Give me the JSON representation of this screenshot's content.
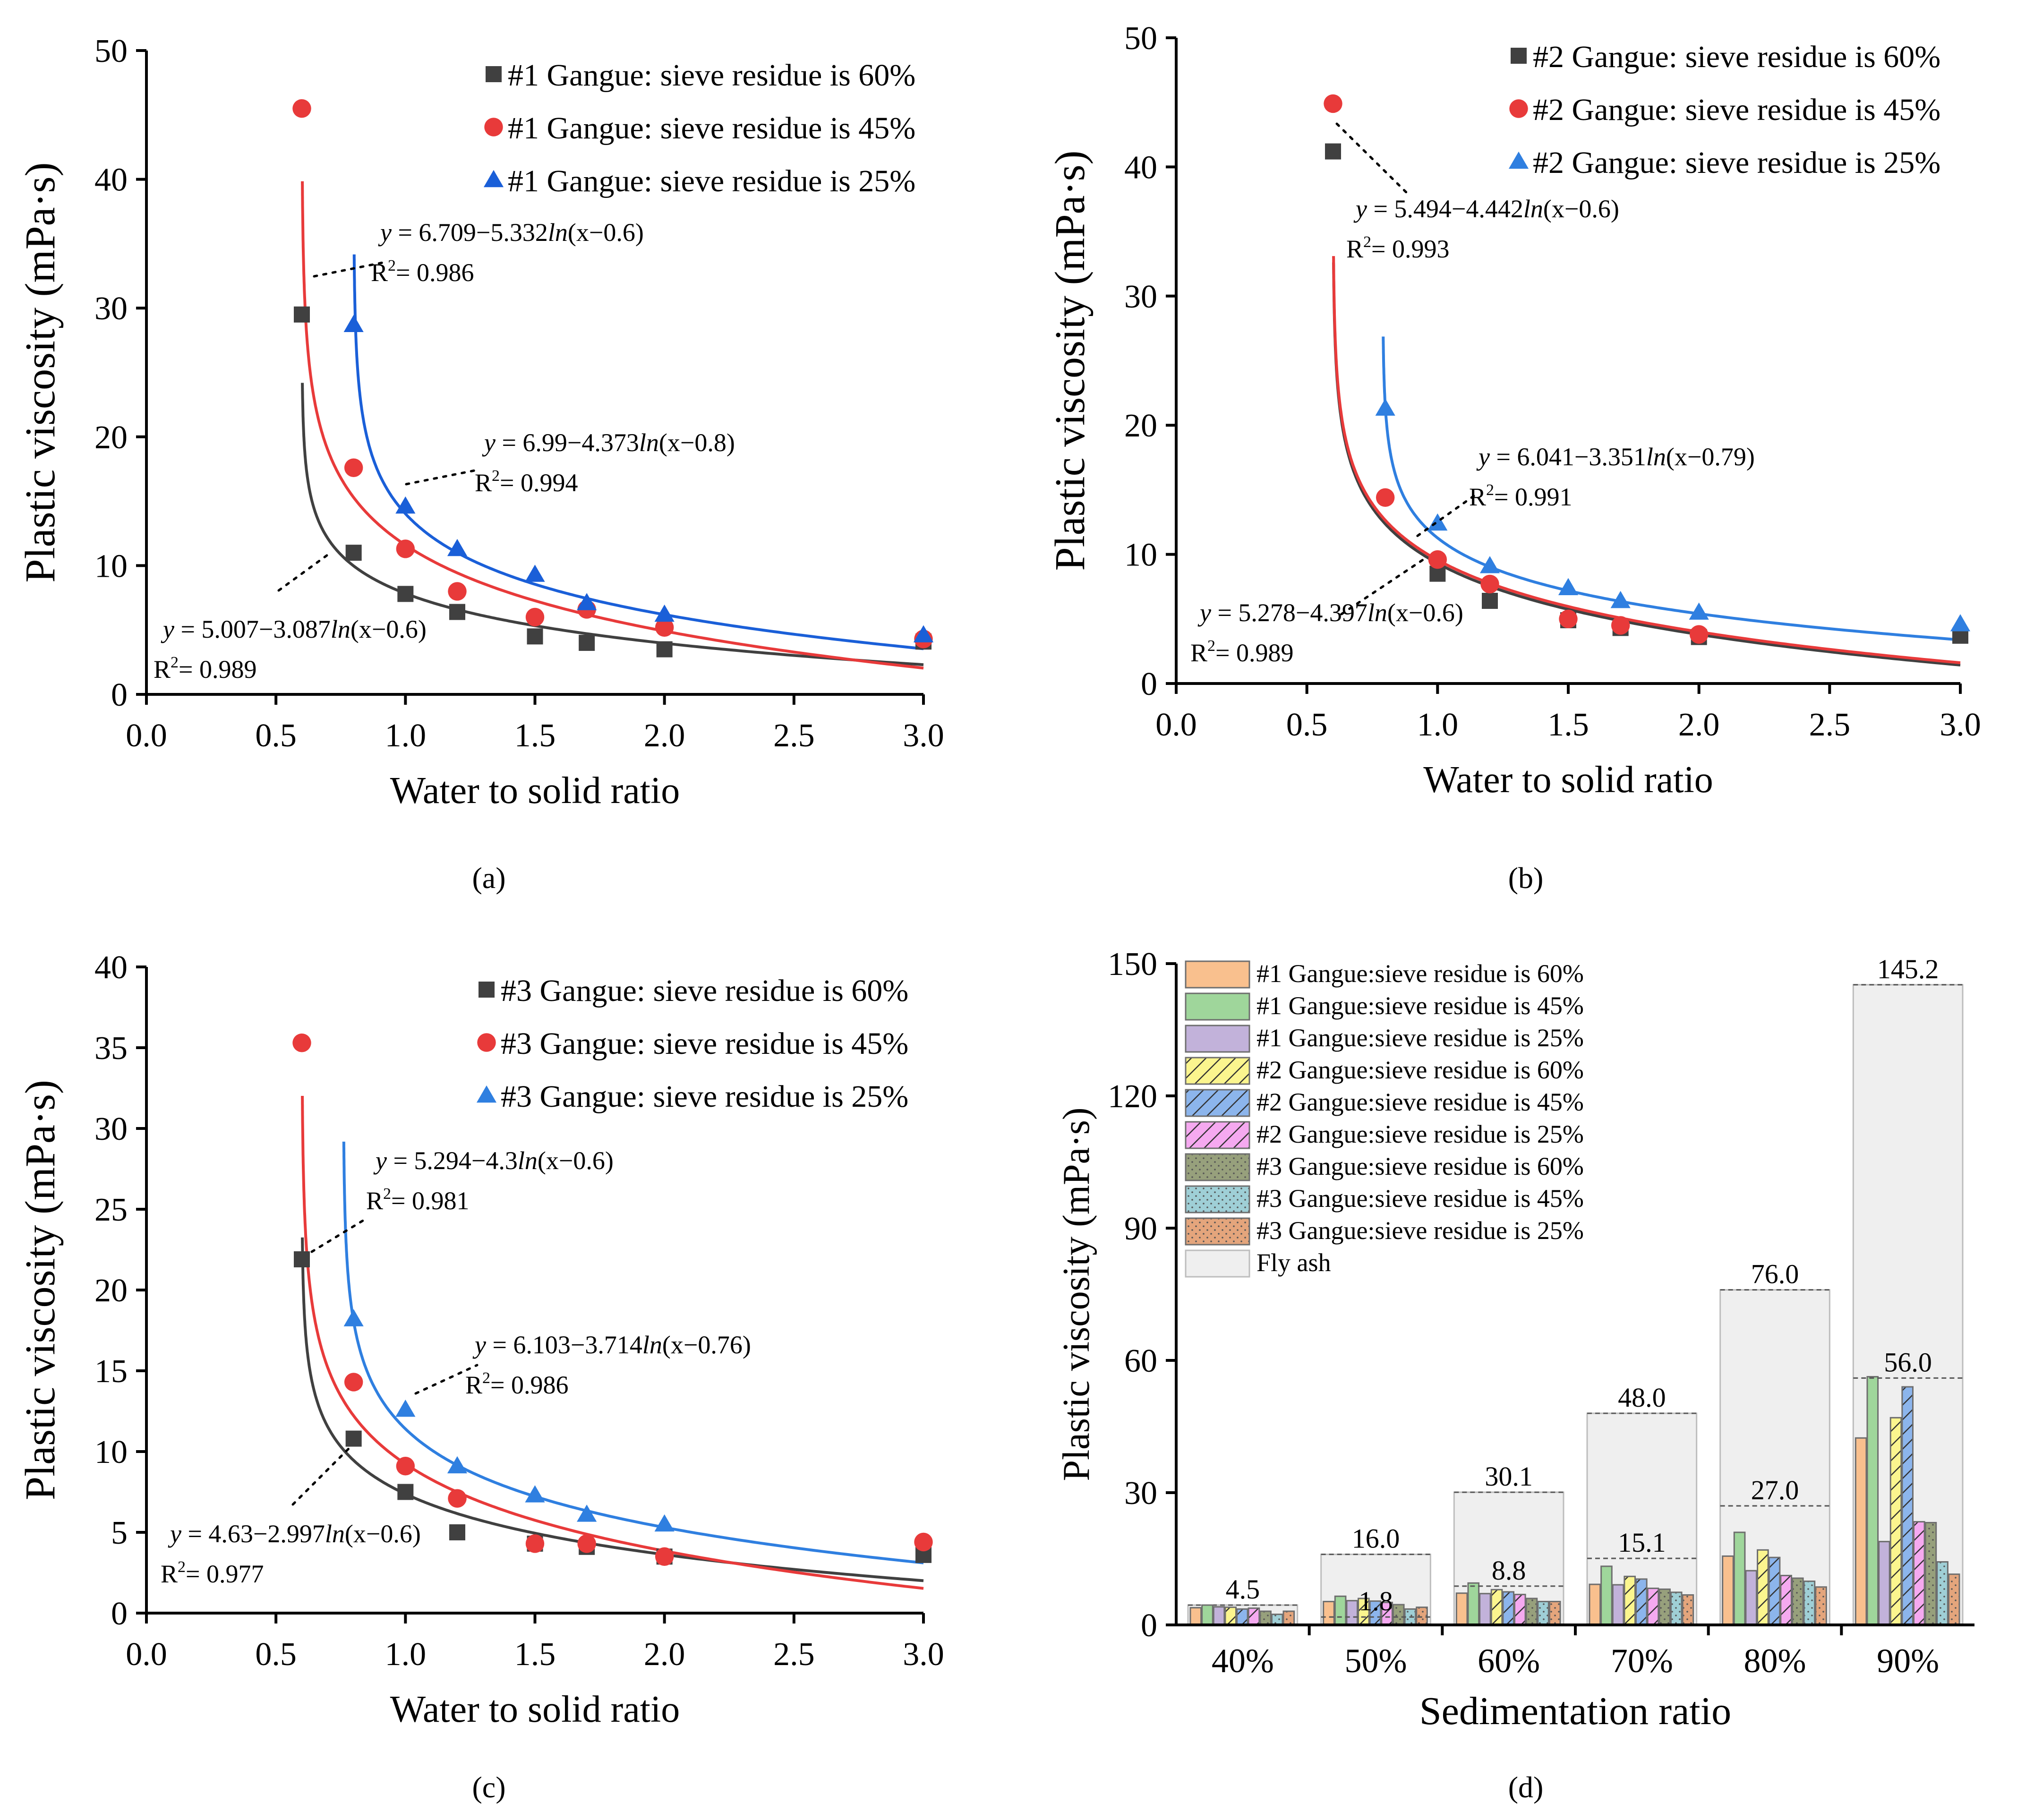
{
  "chart_data": [
    {
      "panel": "(a)",
      "type": "scatter",
      "xlabel": "Water to solid ratio",
      "ylabel": "Plastic viscosity (mPa·s)",
      "xlim": [
        0.0,
        3.0
      ],
      "ylim": [
        0,
        50
      ],
      "xticks": [
        "0.0",
        "0.5",
        "1.0",
        "1.5",
        "2.0",
        "2.5",
        "3.0"
      ],
      "yticks": [
        "0",
        "10",
        "20",
        "30",
        "40",
        "50"
      ],
      "legend_position": "top-right",
      "series": [
        {
          "name": "#1 Gangue: sieve residue is 60%",
          "marker": "square",
          "color": "#404040",
          "x": [
            0.6,
            0.8,
            1.0,
            1.2,
            1.5,
            1.7,
            2.0,
            3.0
          ],
          "y": [
            29.5,
            11.0,
            7.8,
            6.4,
            4.5,
            4.0,
            3.5,
            4.1
          ],
          "fit": {
            "a": 5.007,
            "b": 3.087,
            "c": 0.6
          }
        },
        {
          "name": "#1 Gangue: sieve residue is 45%",
          "marker": "circle",
          "color": "#e83a3a",
          "x": [
            0.6,
            0.8,
            1.0,
            1.2,
            1.5,
            1.7,
            2.0,
            3.0
          ],
          "y": [
            45.5,
            17.6,
            11.3,
            8.0,
            6.0,
            6.6,
            5.2,
            4.3
          ],
          "fit": {
            "a": 6.709,
            "b": 5.332,
            "c": 0.6
          }
        },
        {
          "name": "#1 Gangue: sieve residue is 25%",
          "marker": "triangle",
          "color": "#1a5fd8",
          "x": [
            0.8,
            1.0,
            1.2,
            1.5,
            1.7,
            2.0,
            3.0
          ],
          "y": [
            28.7,
            14.6,
            11.3,
            9.3,
            7.1,
            6.2,
            4.6
          ],
          "fit": {
            "a": 6.99,
            "b": 4.373,
            "c": 0.8
          }
        }
      ],
      "annotations": [
        {
          "eq_prefix": "y = 6.709−5.332",
          "eq_ln": "ln",
          "eq_suffix": "(x−0.6)",
          "r2_label": "R",
          "r2_sup": "2",
          "r2_value": "= 0.986"
        },
        {
          "eq_prefix": "y = 6.99−4.373",
          "eq_ln": "ln",
          "eq_suffix": "(x−0.8)",
          "r2_label": "R",
          "r2_sup": "2",
          "r2_value": "= 0.994"
        },
        {
          "eq_prefix": "y = 5.007−3.087",
          "eq_ln": "ln",
          "eq_suffix": "(x−0.6)",
          "r2_label": "R",
          "r2_sup": "2",
          "r2_value": "= 0.989"
        }
      ]
    },
    {
      "panel": "(b)",
      "type": "scatter",
      "xlabel": "Water to solid ratio",
      "ylabel": "Plastic viscosity (mPa·s)",
      "xlim": [
        0.0,
        3.0
      ],
      "ylim": [
        0,
        50
      ],
      "xticks": [
        "0.0",
        "0.5",
        "1.0",
        "1.5",
        "2.0",
        "2.5",
        "3.0"
      ],
      "yticks": [
        "0",
        "10",
        "20",
        "30",
        "40",
        "50"
      ],
      "legend_position": "top-right",
      "series": [
        {
          "name": "#2 Gangue: sieve residue is 60%",
          "marker": "square",
          "color": "#404040",
          "x": [
            0.6,
            1.0,
            1.2,
            1.5,
            1.7,
            2.0,
            3.0
          ],
          "y": [
            41.2,
            8.5,
            6.4,
            4.9,
            4.3,
            3.6,
            3.7
          ],
          "fit": {
            "a": 5.278,
            "b": 4.397,
            "c": 0.6
          }
        },
        {
          "name": "#2 Gangue: sieve residue is 45%",
          "marker": "circle",
          "color": "#e83a3a",
          "x": [
            0.6,
            0.8,
            1.0,
            1.2,
            1.5,
            1.7,
            2.0
          ],
          "y": [
            44.9,
            14.4,
            9.6,
            7.7,
            5.0,
            4.5,
            3.8
          ],
          "fit": {
            "a": 5.494,
            "b": 4.442,
            "c": 0.6
          }
        },
        {
          "name": "#2 Gangue: sieve residue is 25%",
          "marker": "triangle",
          "color": "#2f7fe0",
          "x": [
            0.8,
            1.0,
            1.2,
            1.5,
            1.7,
            2.0,
            3.0
          ],
          "y": [
            21.3,
            12.4,
            9.1,
            7.4,
            6.4,
            5.5,
            4.6
          ],
          "fit": {
            "a": 6.041,
            "b": 3.351,
            "c": 0.79
          }
        }
      ],
      "annotations": [
        {
          "eq_prefix": "y = 5.494−4.442",
          "eq_ln": "ln",
          "eq_suffix": "(x−0.6)",
          "r2_label": "R",
          "r2_sup": "2",
          "r2_value": "= 0.993"
        },
        {
          "eq_prefix": "y = 6.041−3.351",
          "eq_ln": "ln",
          "eq_suffix": "(x−0.79)",
          "r2_label": "R",
          "r2_sup": "2",
          "r2_value": "= 0.991"
        },
        {
          "eq_prefix": "y = 5.278−4.397",
          "eq_ln": "ln",
          "eq_suffix": "(x−0.6)",
          "r2_label": "R",
          "r2_sup": "2",
          "r2_value": "= 0.989"
        }
      ]
    },
    {
      "panel": "(c)",
      "type": "scatter",
      "xlabel": "Water to solid ratio",
      "ylabel": "Plastic viscosity (mPa·s)",
      "xlim": [
        0.0,
        3.0
      ],
      "ylim": [
        0,
        40
      ],
      "xticks": [
        "0.0",
        "0.5",
        "1.0",
        "1.5",
        "2.0",
        "2.5",
        "3.0"
      ],
      "yticks": [
        "0",
        "5",
        "10",
        "15",
        "20",
        "25",
        "30",
        "35",
        "40"
      ],
      "legend_position": "top-right",
      "series": [
        {
          "name": "#3 Gangue: sieve residue is 60%",
          "marker": "square",
          "color": "#404040",
          "x": [
            0.6,
            0.8,
            1.0,
            1.2,
            1.5,
            1.7,
            2.0,
            3.0
          ],
          "y": [
            21.9,
            10.8,
            7.5,
            5.0,
            4.3,
            4.1,
            3.5,
            3.6
          ],
          "fit": {
            "a": 4.63,
            "b": 2.997,
            "c": 0.6
          }
        },
        {
          "name": "#3 Gangue: sieve residue is 45%",
          "marker": "circle",
          "color": "#e83a3a",
          "x": [
            0.6,
            0.8,
            1.0,
            1.2,
            1.5,
            1.7,
            2.0,
            3.0
          ],
          "y": [
            35.3,
            14.3,
            9.1,
            7.1,
            4.3,
            4.3,
            3.5,
            4.4
          ],
          "fit": {
            "a": 5.294,
            "b": 4.3,
            "c": 0.6
          }
        },
        {
          "name": "#3 Gangue: sieve residue is 25%",
          "marker": "triangle",
          "color": "#2f7fe0",
          "x": [
            0.8,
            1.0,
            1.2,
            1.5,
            1.7,
            2.0
          ],
          "y": [
            18.2,
            12.6,
            9.1,
            7.3,
            6.1,
            5.5
          ],
          "fit": {
            "a": 6.103,
            "b": 3.714,
            "c": 0.76
          }
        }
      ],
      "annotations": [
        {
          "eq_prefix": "y = 5.294−4.3",
          "eq_ln": "ln",
          "eq_suffix": "(x−0.6)",
          "r2_label": "R",
          "r2_sup": "2",
          "r2_value": "= 0.981"
        },
        {
          "eq_prefix": "y = 6.103−3.714",
          "eq_ln": "ln",
          "eq_suffix": "(x−0.76)",
          "r2_label": "R",
          "r2_sup": "2",
          "r2_value": "= 0.986"
        },
        {
          "eq_prefix": "y = 4.63−2.997",
          "eq_ln": "ln",
          "eq_suffix": "(x−0.6)",
          "r2_label": "R",
          "r2_sup": "2",
          "r2_value": "= 0.977"
        }
      ]
    },
    {
      "panel": "(d)",
      "type": "bar",
      "xlabel": "Sedimentation ratio",
      "ylabel": "Plastic viscosity (mPa·s)",
      "ylim": [
        0,
        150
      ],
      "yticks": [
        "0",
        "30",
        "60",
        "90",
        "120",
        "150"
      ],
      "categories": [
        "40%",
        "50%",
        "60%",
        "70%",
        "80%",
        "90%"
      ],
      "legend_position": "top-left",
      "series": [
        {
          "name": "#1 Gangue:sieve residue is 60%",
          "color": "#f9c08e",
          "pattern": "solid",
          "values": [
            3.9,
            5.3,
            7.2,
            9.2,
            15.6,
            42.4
          ]
        },
        {
          "name": "#1 Gangue:sieve residue is 45%",
          "color": "#9fd69b",
          "pattern": "solid",
          "values": [
            4.5,
            6.5,
            9.5,
            13.3,
            21.0,
            56.3
          ]
        },
        {
          "name": "#1 Gangue:sieve residue is 25%",
          "color": "#c2b2da",
          "pattern": "solid",
          "values": [
            4.1,
            5.5,
            7.1,
            9.1,
            12.3,
            18.9
          ]
        },
        {
          "name": "#2 Gangue:sieve residue is 60%",
          "color": "#fbf58e",
          "pattern": "hatch",
          "values": [
            4.0,
            6.0,
            8.0,
            11.0,
            17.0,
            47.0
          ]
        },
        {
          "name": "#2 Gangue:sieve residue is 45%",
          "color": "#8cb5ec",
          "pattern": "hatch",
          "values": [
            3.6,
            5.4,
            7.5,
            10.4,
            15.3,
            54.0
          ]
        },
        {
          "name": "#2 Gangue:sieve residue is 25%",
          "color": "#f5a9f0",
          "pattern": "hatch",
          "values": [
            3.8,
            5.1,
            6.9,
            8.3,
            11.2,
            23.4
          ]
        },
        {
          "name": "#3 Gangue:sieve residue is 60%",
          "color": "#97a07c",
          "pattern": "dots",
          "values": [
            3.1,
            4.6,
            6.0,
            8.1,
            10.6,
            23.2
          ]
        },
        {
          "name": "#3 Gangue:sieve residue is 45%",
          "color": "#9fcfd6",
          "pattern": "dots",
          "values": [
            2.4,
            3.6,
            5.3,
            7.4,
            9.9,
            14.3
          ]
        },
        {
          "name": "#3 Gangue:sieve residue is 25%",
          "color": "#e4a57c",
          "pattern": "dots",
          "values": [
            3.1,
            4.0,
            5.3,
            6.8,
            8.6,
            11.5
          ]
        }
      ],
      "fly_ash": {
        "name": "Fly ash",
        "color": "#efefef",
        "values": [
          4.5,
          16.0,
          30.1,
          48.0,
          76.0,
          145.2
        ],
        "labels": [
          "4.5",
          "16.0",
          "30.1",
          "48.0",
          "76.0",
          "145.2"
        ]
      },
      "inner_references": [
        {
          "category": "50%",
          "value": 1.8,
          "label": "1.8"
        },
        {
          "category": "60%",
          "value": 8.8,
          "label": "8.8"
        },
        {
          "category": "70%",
          "value": 15.1,
          "label": "15.1"
        },
        {
          "category": "80%",
          "value": 27.0,
          "label": "27.0"
        },
        {
          "category": "90%",
          "value": 56.0,
          "label": "56.0"
        }
      ]
    }
  ]
}
